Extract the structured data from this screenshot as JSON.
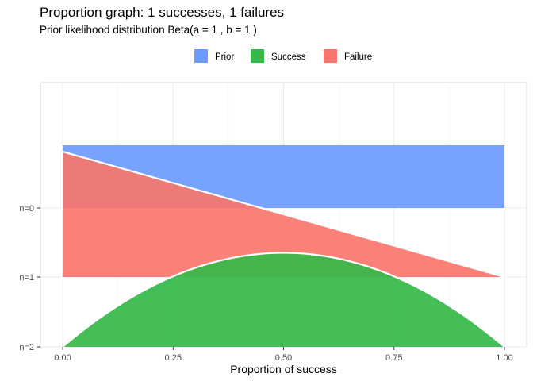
{
  "chart_data": {
    "type": "area",
    "title": "Proportion graph: 1 successes, 1 failures",
    "subtitle": "Prior likelihood distribution Beta(a = 1 , b = 1 )",
    "xlabel": "Proportion of success",
    "ylabel": "",
    "xlim": [
      0,
      1
    ],
    "x_ticks": [
      "0.00",
      "0.25",
      "0.50",
      "0.75",
      "1.00"
    ],
    "y_ticks": [
      "n=0",
      "n=1",
      "n=2"
    ],
    "legend": {
      "position": "top"
    },
    "grid": true,
    "series": [
      {
        "name": "Prior",
        "color": "#6b9bff",
        "baseline": "n=0",
        "shape": "Beta(1,1) density",
        "x": [
          0,
          1
        ],
        "y": [
          1,
          1
        ]
      },
      {
        "name": "Failure",
        "color": "#f8766d",
        "baseline": "n=1",
        "shape": "Beta(1,2) density",
        "x": [
          0,
          1
        ],
        "y": [
          2,
          0
        ]
      },
      {
        "name": "Success",
        "color": "#35b84a",
        "baseline": "n=2",
        "shape": "Beta(2,2) density",
        "x": [
          0,
          0.25,
          0.5,
          0.75,
          1
        ],
        "y": [
          0,
          1.125,
          1.5,
          1.125,
          0
        ]
      }
    ]
  }
}
